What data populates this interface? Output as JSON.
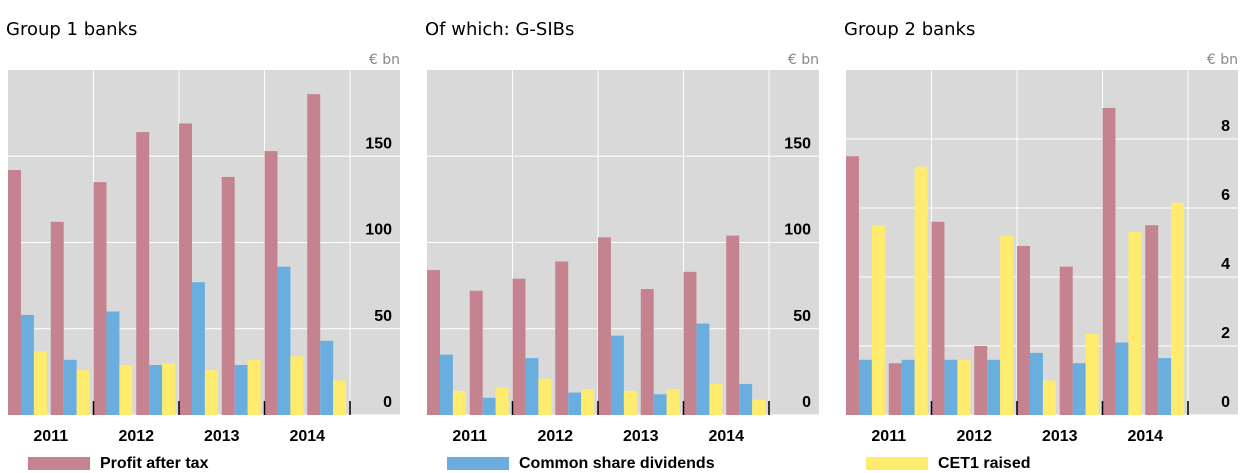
{
  "chart_data": [
    {
      "type": "bar",
      "title": "Group 1 banks",
      "unit": "€ bn",
      "categories": [
        "2011",
        null,
        "2012",
        null,
        "2013",
        null,
        "2014",
        null
      ],
      "series": [
        {
          "color": "#c4838f",
          "values": [
            142,
            112,
            135,
            164,
            169,
            138,
            153,
            186
          ]
        },
        {
          "color": "#6aaee0",
          "values": [
            58,
            32,
            60,
            29,
            77,
            29,
            86,
            43
          ]
        },
        {
          "color": "#ffec6e",
          "values": [
            37,
            26,
            29,
            30,
            26,
            32,
            34,
            20
          ]
        }
      ],
      "ylim": [
        0,
        200
      ],
      "yticks": [
        0,
        50,
        100,
        150
      ],
      "grid": true
    },
    {
      "type": "bar",
      "title": "Of which: G-SIBs",
      "unit": "€ bn",
      "categories": [
        "2011",
        null,
        "2012",
        null,
        "2013",
        null,
        "2014",
        null
      ],
      "series": [
        {
          "color": "#c4838f",
          "values": [
            84,
            72,
            79,
            89,
            103,
            73,
            83,
            104
          ]
        },
        {
          "color": "#6aaee0",
          "values": [
            35,
            10,
            33,
            13,
            46,
            12,
            53,
            18
          ]
        },
        {
          "color": "#ffec6e",
          "values": [
            14,
            16,
            21,
            15,
            14,
            15,
            18,
            9
          ]
        }
      ],
      "ylim": [
        0,
        200
      ],
      "yticks": [
        0,
        50,
        100,
        150
      ],
      "grid": true
    },
    {
      "type": "bar",
      "title": "Group 2 banks",
      "unit": "€ bn",
      "categories": [
        "2011",
        null,
        "2012",
        null,
        "2013",
        null,
        "2014",
        null
      ],
      "series": [
        {
          "color": "#c4838f",
          "values": [
            7.5,
            1.5,
            5.6,
            2.0,
            4.9,
            4.3,
            8.9,
            5.5
          ]
        },
        {
          "color": "#6aaee0",
          "values": [
            1.6,
            1.6,
            1.6,
            1.6,
            1.8,
            1.5,
            2.1,
            1.65
          ]
        },
        {
          "color": "#ffec6e",
          "values": [
            5.5,
            7.2,
            1.6,
            5.2,
            1.0,
            2.35,
            5.3,
            6.15
          ]
        }
      ],
      "ylim": [
        0,
        10
      ],
      "yticks": [
        0,
        2,
        4,
        6,
        8
      ],
      "grid": true
    }
  ],
  "legend": [
    {
      "name": "Profit after tax",
      "color": "#c4838f"
    },
    {
      "name": "Common share dividends",
      "color": "#6aaee0"
    },
    {
      "name": "CET1 raised",
      "color": "#ffec6e"
    }
  ]
}
